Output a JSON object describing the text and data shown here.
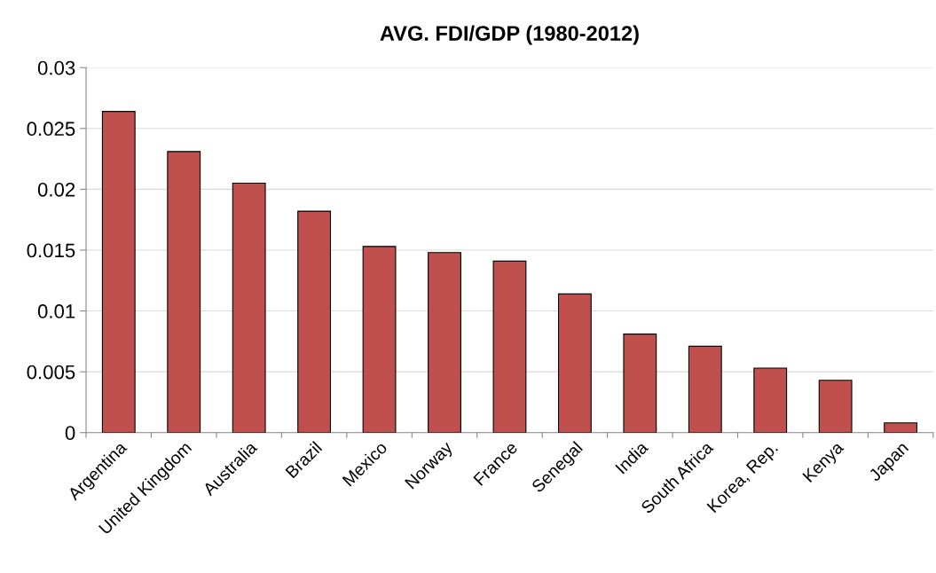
{
  "chart_data": {
    "type": "bar",
    "title": "AVG. FDI/GDP (1980-2012)",
    "categories": [
      "Argentina",
      "United Kingdom",
      "Australia",
      "Brazil",
      "Mexico",
      "Norway",
      "France",
      "Senegal",
      "India",
      "South Africa",
      "Korea, Rep.",
      "Kenya",
      "Japan"
    ],
    "values": [
      0.0264,
      0.0231,
      0.0205,
      0.0182,
      0.0153,
      0.0148,
      0.0141,
      0.0114,
      0.0081,
      0.0071,
      0.0053,
      0.0043,
      0.0008
    ],
    "color": "#c0504d",
    "ylim": [
      0,
      0.03
    ],
    "yticks": [
      {
        "value": 0,
        "label": "0"
      },
      0.005,
      0.01,
      0.015,
      0.02,
      0.025,
      0.03
    ],
    "grid": "y",
    "legend": false
  }
}
